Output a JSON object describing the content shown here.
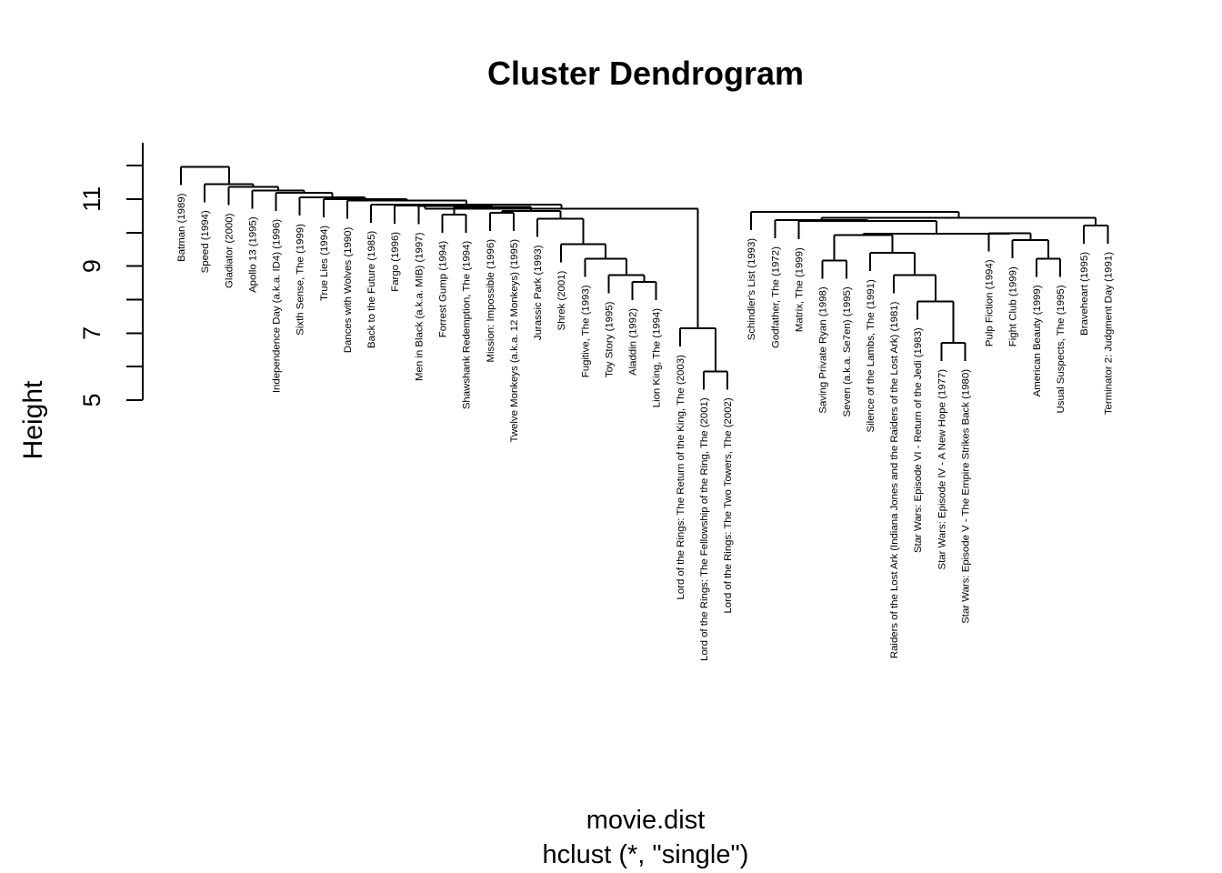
{
  "chart_data": {
    "type": "dendrogram",
    "title": "Cluster Dendrogram",
    "xlabel": "movie.dist",
    "sublabel": "hclust (*, \"single\")",
    "ylabel": "Height",
    "ylim": [
      5,
      12.5
    ],
    "yticks": [
      5,
      6,
      7,
      8,
      9,
      10,
      11,
      12
    ],
    "ytick_labels": [
      "5",
      "7",
      "9",
      "11"
    ],
    "ytick_label_values": [
      5,
      7,
      9,
      11
    ],
    "leaves": [
      "Batman (1989)",
      "Speed (1994)",
      "Gladiator (2000)",
      "Apollo 13 (1995)",
      "Independence Day (a.k.a. ID4) (1996)",
      "Sixth Sense, The (1999)",
      "True Lies (1994)",
      "Dances with Wolves (1990)",
      "Back to the Future (1985)",
      "Fargo (1996)",
      "Men in Black (a.k.a. MIB) (1997)",
      "Forrest Gump (1994)",
      "Shawshank Redemption, The (1994)",
      "Mission: Impossible (1996)",
      "Twelve Monkeys (a.k.a. 12 Monkeys) (1995)",
      "Jurassic Park (1993)",
      "Shrek (2001)",
      "Fugitive, The (1993)",
      "Toy Story (1995)",
      "Aladdin (1992)",
      "Lion King, The (1994)",
      "Lord of the Rings: The Return of the King, The (2003)",
      "Lord of the Rings: The Fellowship of the Ring, The (2001)",
      "Lord of the Rings: The Two Towers, The (2002)",
      "Schindler's List (1993)",
      "Godfather, The (1972)",
      "Matrix, The (1999)",
      "Saving Private Ryan (1998)",
      "Seven (a.k.a. Se7en) (1995)",
      "Silence of the Lambs, The (1991)",
      "Raiders of the Lost Ark (Indiana Jones and the Raiders of the Lost Ark) (1981)",
      "Star Wars: Episode VI - Return of the Jedi (1983)",
      "Star Wars: Episode IV - A New Hope (1977)",
      "Star Wars: Episode V - The Empire Strikes Back (1980)",
      "Pulp Fiction (1994)",
      "Fight Club (1999)",
      "American Beauty (1999)",
      "Usual Suspects, The (1995)",
      "Braveheart (1995)",
      "Terminator 2: Judgment Day (1991)"
    ],
    "merges": [
      [
        32,
        33,
        6.71
      ],
      [
        22,
        23,
        5.86
      ],
      [
        19,
        20,
        8.53
      ],
      [
        18,
        "m3",
        8.73
      ],
      [
        31,
        "m1",
        7.95
      ],
      [
        21,
        "m2",
        7.14
      ],
      [
        17,
        "m4",
        9.22
      ],
      [
        30,
        "m5",
        8.73
      ],
      [
        27,
        28,
        9.17
      ],
      [
        36,
        37,
        9.22
      ],
      [
        16,
        "m7",
        9.65
      ],
      [
        35,
        "m10",
        9.77
      ],
      [
        29,
        "m8",
        9.39
      ],
      [
        11,
        12,
        10.54
      ],
      [
        15,
        "m11",
        10.41
      ],
      [
        13,
        14,
        10.59
      ],
      [
        "m9",
        "m13",
        9.92
      ],
      [
        34,
        "m12",
        9.98
      ],
      [
        "m16",
        "m15",
        10.65
      ],
      [
        "m17",
        "m18",
        9.97
      ],
      [
        38,
        39,
        10.21
      ],
      [
        26,
        "m20",
        10.34
      ],
      [
        "m19",
        "m14",
        10.76
      ],
      [
        25,
        "m22",
        10.37
      ],
      [
        "m24",
        "m21",
        10.44
      ],
      [
        24,
        "m25",
        10.62
      ],
      [
        10,
        "m23",
        10.79
      ],
      [
        9,
        "m27",
        10.81
      ],
      [
        "m28",
        "m6",
        10.71
      ],
      [
        8,
        "m29",
        10.84
      ],
      [
        7,
        "m30",
        10.95
      ],
      [
        6,
        "m31",
        11.0
      ],
      [
        5,
        "m32",
        11.05
      ],
      [
        4,
        "m33",
        11.19
      ],
      [
        3,
        "m34",
        11.26
      ],
      [
        2,
        "m35",
        11.36
      ],
      [
        1,
        "m36",
        11.45
      ],
      [
        0,
        "m37",
        11.96
      ]
    ]
  }
}
